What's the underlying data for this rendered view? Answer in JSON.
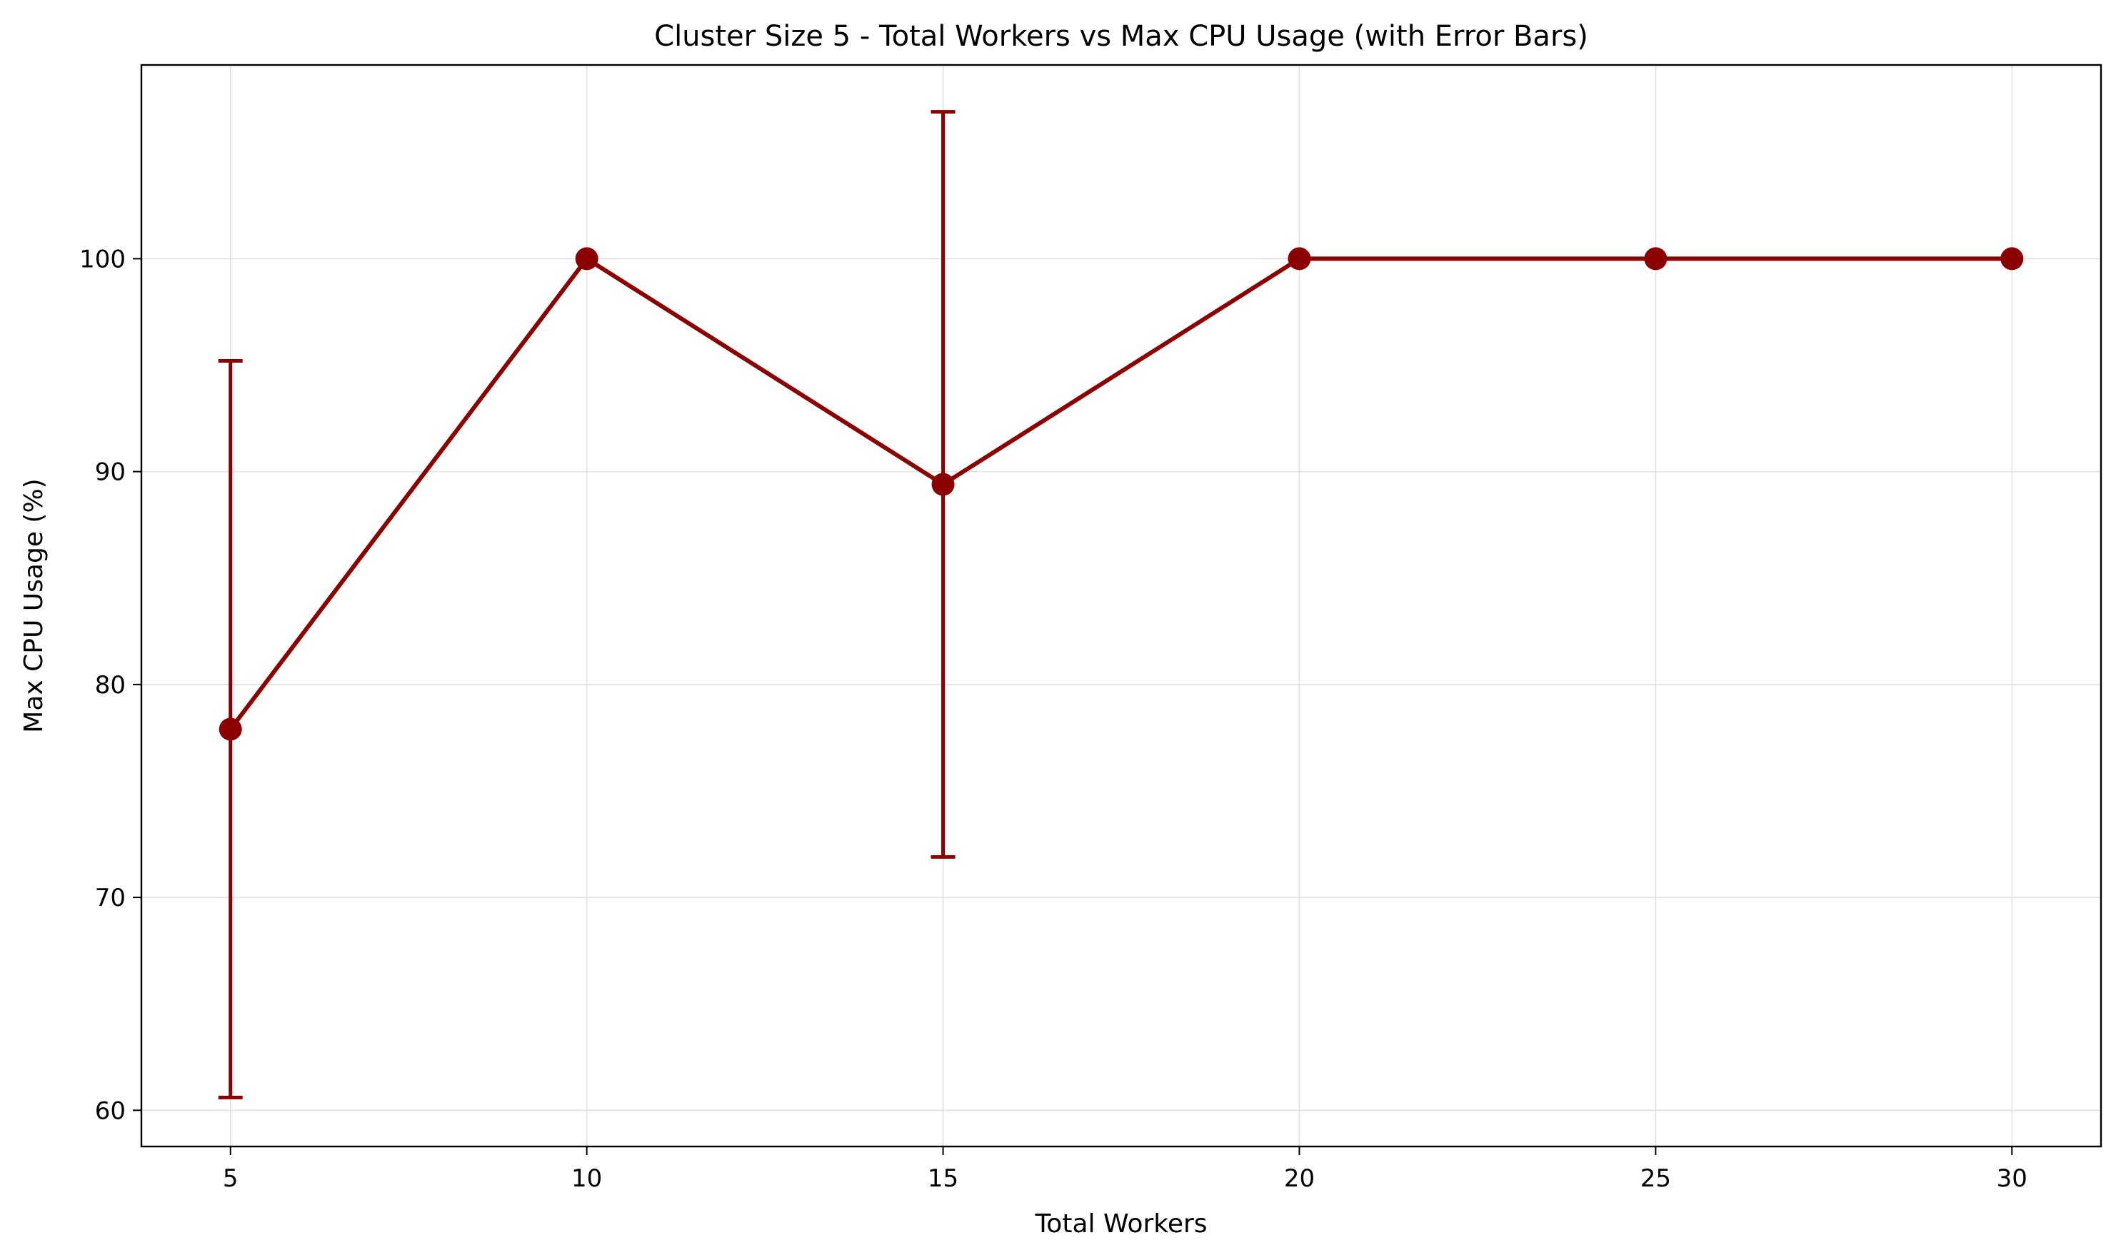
{
  "chart_data": {
    "type": "line",
    "title": "Cluster Size 5 - Total Workers vs Max CPU Usage (with Error Bars)",
    "xlabel": "Total Workers",
    "ylabel": "Max CPU Usage (%)",
    "x": [
      5,
      10,
      15,
      20,
      25,
      30
    ],
    "series": [
      {
        "values": [
          77.9,
          100.0,
          89.4,
          100.0,
          100.0,
          100.0
        ],
        "error": [
          17.3,
          0,
          17.5,
          0,
          0,
          0
        ],
        "color": "#8b0000",
        "marker": "circle",
        "error_bars": true
      }
    ],
    "x_ticks": [
      "5",
      "10",
      "15",
      "20",
      "25",
      "30"
    ],
    "y_ticks": [
      "60",
      "70",
      "80",
      "90",
      "100"
    ],
    "xlim": [
      3.75,
      31.25
    ],
    "ylim": [
      58.3,
      109.1
    ],
    "grid": true,
    "legend": "none"
  }
}
